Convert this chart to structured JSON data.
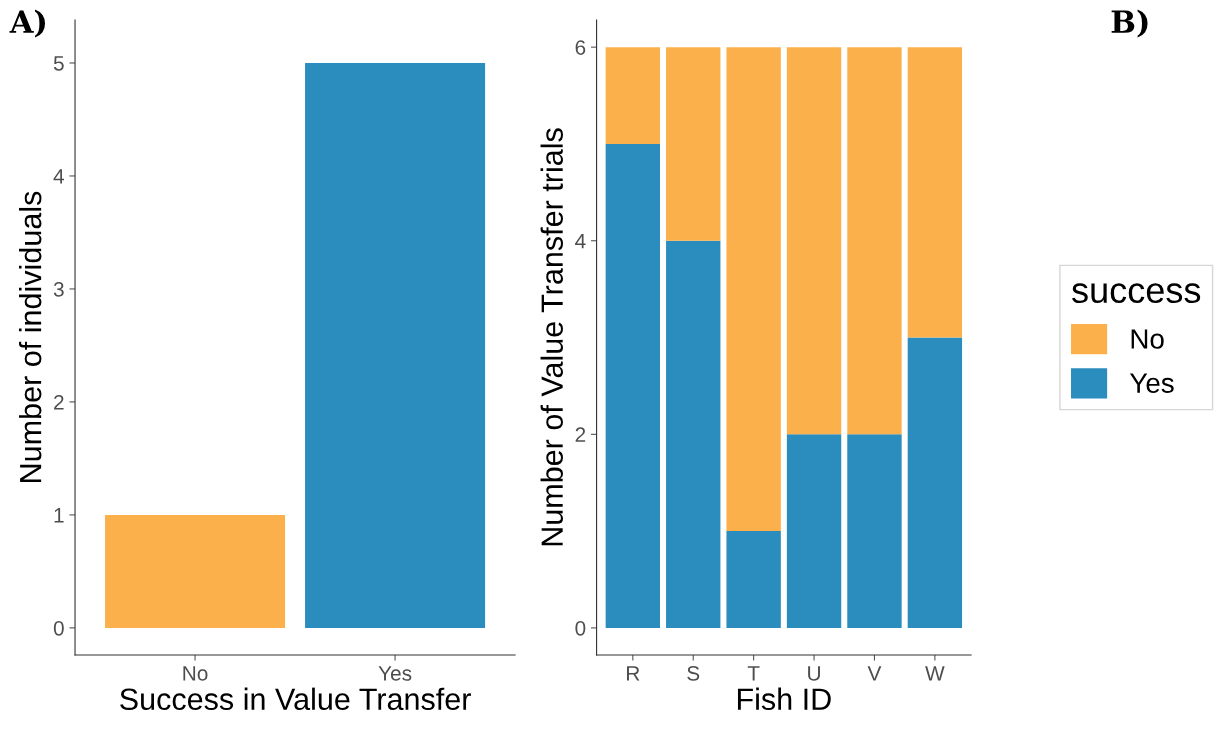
{
  "chart_data": [
    {
      "type": "bar",
      "xlabel": "Success in Value Transfer",
      "ylabel": "Number of individuals",
      "categories": [
        "No",
        "Yes"
      ],
      "values": [
        1,
        5
      ],
      "colors": [
        "#fbb04b",
        "#2b8cbe"
      ],
      "ylim": [
        -0.24,
        5.38
      ],
      "yticks": [
        0,
        1,
        2,
        3,
        4,
        5
      ],
      "grid": false,
      "legend": false,
      "annotations": [
        "A)"
      ]
    },
    {
      "type": "bar",
      "stacked": true,
      "xlabel": "Fish ID",
      "ylabel": "Number of Value Transfer trials",
      "legend_title": "success",
      "legend": "right",
      "categories": [
        "R",
        "S",
        "T",
        "U",
        "V",
        "W"
      ],
      "series": [
        {
          "name": "Yes",
          "color": "#2b8cbe",
          "values": [
            5,
            4,
            1,
            2,
            2,
            3
          ]
        },
        {
          "name": "No",
          "color": "#fbb04b",
          "values": [
            1,
            2,
            5,
            4,
            4,
            3
          ]
        }
      ],
      "ylim": [
        -0.28,
        6.28
      ],
      "yticks": [
        0,
        2,
        4,
        6
      ],
      "grid": false,
      "annotations": [
        "B)"
      ]
    }
  ]
}
